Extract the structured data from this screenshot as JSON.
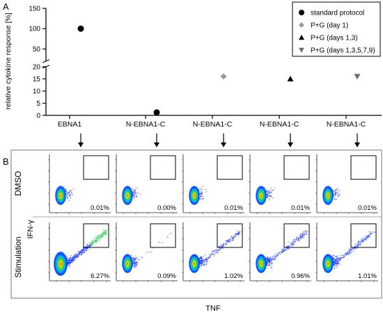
{
  "panel_a": {
    "letter": "A",
    "ylabel": "relative cytokine response [%]",
    "upper_ticks": [
      "150",
      "100",
      "50"
    ],
    "lower_ticks": [
      "20",
      "15",
      "10",
      "5",
      "0"
    ],
    "legend": [
      {
        "label": "standard protocol",
        "marker": "circle",
        "color": "#000000"
      },
      {
        "label": "P+G (day 1)",
        "marker": "diamond",
        "color": "#9a9a9a"
      },
      {
        "label": "P+G (days 1,3)",
        "marker": "triangle-up",
        "color": "#000000"
      },
      {
        "label": "P+G (days 1,3,5,7,9)",
        "marker": "triangle-down",
        "color": "#6e6e6e"
      }
    ]
  },
  "chart_data": {
    "type": "scatter",
    "categories": [
      "EBNA1",
      "N-EBNA1-C",
      "N-EBNA1-C",
      "N-EBNA1-C",
      "N-EBNA1-C"
    ],
    "ylabel": "relative cytokine response [%]",
    "axis_break": {
      "lower_range": [
        0,
        20
      ],
      "upper_range": [
        20,
        150
      ]
    },
    "points": [
      {
        "category_index": 0,
        "series": "standard protocol",
        "y": 100
      },
      {
        "category_index": 1,
        "series": "standard protocol",
        "y": 1.2
      },
      {
        "category_index": 2,
        "series": "P+G (day 1)",
        "y": 16
      },
      {
        "category_index": 3,
        "series": "P+G (days 1,3)",
        "y": 15
      },
      {
        "category_index": 4,
        "series": "P+G (days 1,3,5,7,9)",
        "y": 16
      }
    ]
  },
  "panel_b": {
    "letter": "B",
    "row_labels": [
      "DMSO",
      "Stimulation"
    ],
    "ylabel": "IFN-γ",
    "xlabel": "TNF",
    "percent_rows": [
      [
        "0.01%",
        "0.00%",
        "0.01%",
        "0.01%",
        "0.01%"
      ],
      [
        "6.27%",
        "0.09%",
        "1.02%",
        "0.96%",
        "1.01%"
      ]
    ],
    "gate_density": [
      [
        0.0,
        0.0,
        0.0,
        0.0,
        0.0
      ],
      [
        1.0,
        0.03,
        0.45,
        0.45,
        0.45
      ]
    ]
  }
}
